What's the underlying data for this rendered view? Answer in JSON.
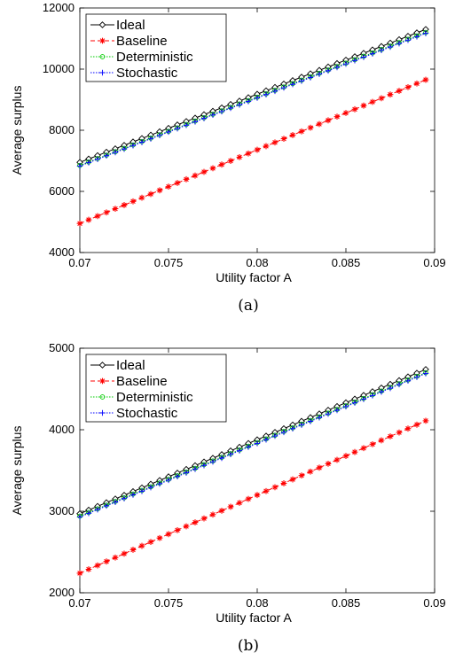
{
  "chart_data": [
    {
      "type": "line",
      "caption": "(a)",
      "xlabel": "Utility factor A",
      "ylabel": "Average surplus",
      "xlim": [
        0.07,
        0.09
      ],
      "ylim": [
        4000,
        12000
      ],
      "xticks": [
        "0.07",
        "0.075",
        "0.08",
        "0.085",
        "0.09"
      ],
      "yticks": [
        "4000",
        "6000",
        "8000",
        "10000",
        "12000"
      ],
      "legend_position": "top-left",
      "x_start": 0.07,
      "x_end": 0.0895,
      "n_points": 40,
      "series": [
        {
          "name": "Ideal",
          "start": 6950,
          "end": 11300,
          "color": "#000000",
          "marker": "diamond",
          "dash": "solid"
        },
        {
          "name": "Baseline",
          "start": 4950,
          "end": 9650,
          "color": "#ff0000",
          "marker": "star",
          "dash": "dashed"
        },
        {
          "name": "Deterministic",
          "start": 6850,
          "end": 11200,
          "color": "#00cc00",
          "marker": "circle",
          "dash": "dotted"
        },
        {
          "name": "Stochastic",
          "start": 6830,
          "end": 11170,
          "color": "#0000ff",
          "marker": "plus",
          "dash": "dotted"
        }
      ]
    },
    {
      "type": "line",
      "caption": "(b)",
      "xlabel": "Utility factor A",
      "ylabel": "Average surplus",
      "xlim": [
        0.07,
        0.09
      ],
      "ylim": [
        2000,
        5000
      ],
      "xticks": [
        "0.07",
        "0.075",
        "0.08",
        "0.085",
        "0.09"
      ],
      "yticks": [
        "2000",
        "3000",
        "4000",
        "5000"
      ],
      "legend_position": "top-left",
      "x_start": 0.07,
      "x_end": 0.0895,
      "n_points": 40,
      "series": [
        {
          "name": "Ideal",
          "start": 2970,
          "end": 4740,
          "color": "#000000",
          "marker": "diamond",
          "dash": "solid"
        },
        {
          "name": "Baseline",
          "start": 2240,
          "end": 4110,
          "color": "#ff0000",
          "marker": "star",
          "dash": "dashed"
        },
        {
          "name": "Deterministic",
          "start": 2940,
          "end": 4700,
          "color": "#00cc00",
          "marker": "circle",
          "dash": "dotted"
        },
        {
          "name": "Stochastic",
          "start": 2930,
          "end": 4690,
          "color": "#0000ff",
          "marker": "plus",
          "dash": "dotted"
        }
      ]
    }
  ]
}
